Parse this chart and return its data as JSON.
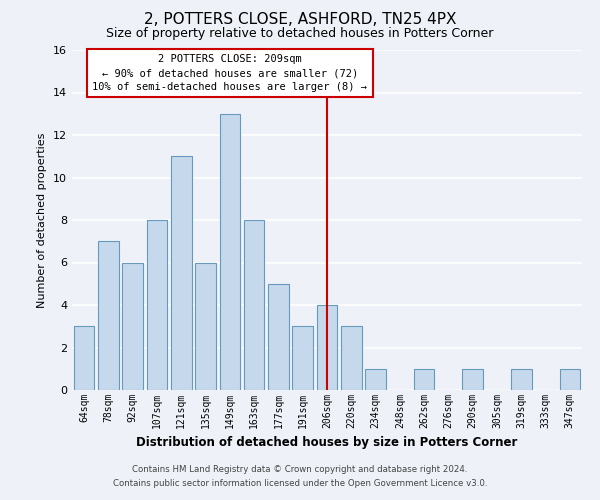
{
  "title": "2, POTTERS CLOSE, ASHFORD, TN25 4PX",
  "subtitle": "Size of property relative to detached houses in Potters Corner",
  "xlabel": "Distribution of detached houses by size in Potters Corner",
  "ylabel": "Number of detached properties",
  "bin_labels": [
    "64sqm",
    "78sqm",
    "92sqm",
    "107sqm",
    "121sqm",
    "135sqm",
    "149sqm",
    "163sqm",
    "177sqm",
    "191sqm",
    "206sqm",
    "220sqm",
    "234sqm",
    "248sqm",
    "262sqm",
    "276sqm",
    "290sqm",
    "305sqm",
    "319sqm",
    "333sqm",
    "347sqm"
  ],
  "counts": [
    3,
    7,
    6,
    8,
    11,
    6,
    13,
    8,
    5,
    3,
    4,
    3,
    1,
    0,
    1,
    0,
    1,
    0,
    1,
    0,
    1
  ],
  "bar_color": "#c6d9ec",
  "bar_edge_color": "#6699bb",
  "vline_x_index": 10,
  "vline_color": "#cc0000",
  "annotation_line1": "2 POTTERS CLOSE: 209sqm",
  "annotation_line2": "← 90% of detached houses are smaller (72)",
  "annotation_line3": "10% of semi-detached houses are larger (8) →",
  "annotation_box_color": "#ffffff",
  "annotation_box_edge": "#cc0000",
  "ylim": [
    0,
    16
  ],
  "yticks": [
    0,
    2,
    4,
    6,
    8,
    10,
    12,
    14,
    16
  ],
  "footer1": "Contains HM Land Registry data © Crown copyright and database right 2024.",
  "footer2": "Contains public sector information licensed under the Open Government Licence v3.0.",
  "background_color": "#eef2f8",
  "plot_bg_color": "#eef2f8",
  "grid_color": "#ffffff",
  "title_fontsize": 11,
  "subtitle_fontsize": 9
}
